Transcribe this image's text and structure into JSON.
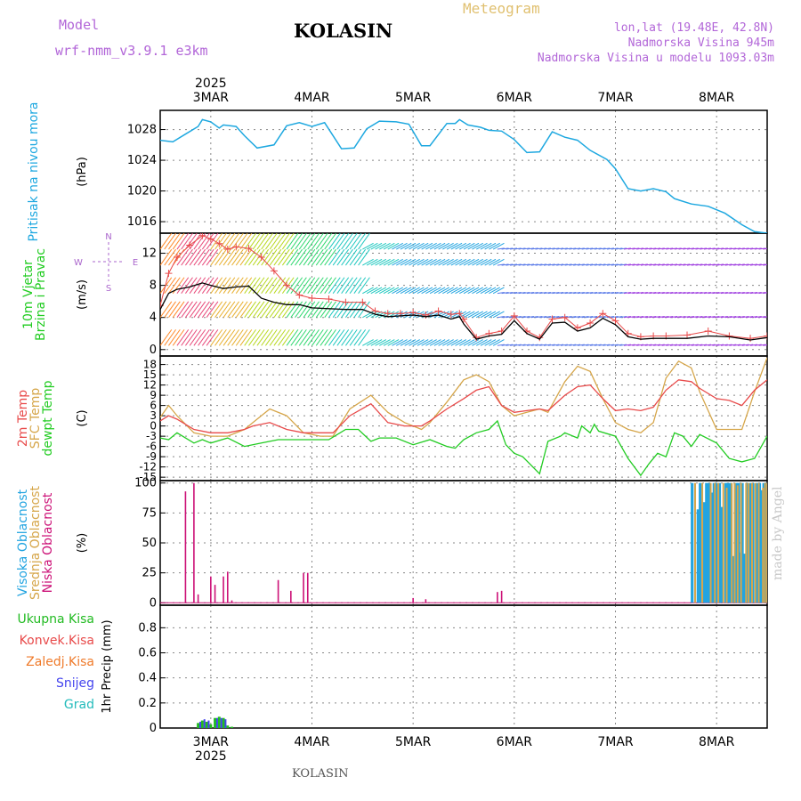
{
  "header": {
    "model_label": "Model",
    "model_name": "wrf-nmm_v3.9.1 e3km",
    "station": "KOLASIN",
    "product": "Meteogram",
    "coords": "lon,lat (19.48E, 42.8N)",
    "elevation": "Nadmorska Visina 945m",
    "model_elevation": "Nadmorska Visina u modelu 1093.03m"
  },
  "footer": {
    "station": "KOLASIN",
    "credit": "made by Angel"
  },
  "colors": {
    "pressure": "#1ea8e0",
    "temp2m": "#e84a4a",
    "sfc": "#d6a64a",
    "dew": "#22cc22",
    "wind_speed": "#000000",
    "gust": "#e84a4a",
    "cloud_high": "#22a4e0",
    "cloud_mid": "#d6a64a",
    "cloud_low": "#cc1177",
    "precip_total": "#22bb22",
    "precip_conv": "#e84a4a",
    "precip_ice": "#ef7a2a",
    "precip_snow": "#4444ee",
    "precip_graupel": "#22bbbb",
    "compass": "#aa66cc"
  },
  "time_axis": {
    "year": "2025",
    "days": [
      {
        "label": "3MAR",
        "t": 12
      },
      {
        "label": "4MAR",
        "t": 36
      },
      {
        "label": "5MAR",
        "t": 60
      },
      {
        "label": "6MAR",
        "t": 84
      },
      {
        "label": "7MAR",
        "t": 108
      },
      {
        "label": "8MAR",
        "t": 132
      }
    ]
  },
  "compass": {
    "n": "N",
    "s": "S",
    "e": "E",
    "w": "W"
  },
  "chart_data": [
    {
      "type": "line",
      "name": "pressure",
      "title_lines": [
        "Pritisak na nivou mora"
      ],
      "ylabel": "(hPa)",
      "xlim": [
        0,
        144
      ],
      "ylim": [
        1014.5,
        1030.5
      ],
      "yticks": [
        1016,
        1020,
        1024,
        1028
      ],
      "series": [
        {
          "name": "MSLP",
          "x": [
            0,
            3,
            6,
            9,
            10,
            12,
            14,
            15,
            18,
            20,
            23,
            27,
            30,
            33,
            36,
            39,
            43,
            46,
            49,
            52,
            56,
            59,
            62,
            64,
            68,
            70,
            71,
            73,
            76,
            78,
            81,
            84,
            87,
            90,
            93,
            96,
            99,
            102,
            106,
            108,
            111,
            114,
            117,
            120,
            122,
            126,
            130,
            134,
            138,
            141,
            144
          ],
          "y": [
            1026.6,
            1026.4,
            1027.4,
            1028.4,
            1029.3,
            1029.0,
            1028.2,
            1028.6,
            1028.4,
            1027.2,
            1025.6,
            1026.0,
            1028.5,
            1028.9,
            1028.4,
            1028.9,
            1025.5,
            1025.6,
            1028.1,
            1029.1,
            1029.0,
            1028.7,
            1025.9,
            1025.9,
            1028.8,
            1028.8,
            1029.3,
            1028.6,
            1028.3,
            1027.9,
            1027.8,
            1026.7,
            1025.0,
            1025.1,
            1027.7,
            1027.0,
            1026.6,
            1025.3,
            1024.1,
            1022.9,
            1020.3,
            1020.0,
            1020.3,
            1019.9,
            1019.0,
            1018.3,
            1018.0,
            1017.1,
            1015.6,
            1014.7,
            1014.5
          ]
        }
      ]
    },
    {
      "type": "line",
      "name": "wind",
      "title_lines": [
        "10m Vjetar",
        "Brzina i Pravac"
      ],
      "ylabel": "(m/s)",
      "xlim": [
        0,
        144
      ],
      "ylim": [
        -0.8,
        14.5
      ],
      "yticks": [
        0,
        4,
        8,
        12
      ],
      "series": [
        {
          "name": "speed",
          "x": [
            0,
            2,
            4,
            7,
            10,
            12,
            15,
            18,
            21,
            24,
            27,
            30,
            33,
            36,
            40,
            44,
            48,
            51,
            54,
            57,
            60,
            63,
            66,
            69,
            71,
            72,
            75,
            78,
            81,
            84,
            87,
            90,
            93,
            96,
            99,
            102,
            105,
            108,
            111,
            114,
            117,
            120,
            125,
            130,
            135,
            140,
            144
          ],
          "y": [
            5.0,
            7.0,
            7.5,
            7.8,
            8.3,
            8.0,
            7.6,
            7.8,
            7.9,
            6.4,
            5.9,
            5.6,
            5.6,
            5.2,
            5.1,
            5.0,
            5.0,
            4.4,
            4.1,
            4.2,
            4.3,
            4.1,
            4.3,
            3.8,
            4.1,
            3.2,
            1.3,
            1.7,
            1.9,
            3.6,
            2.0,
            1.3,
            3.3,
            3.4,
            2.3,
            2.7,
            3.9,
            3.1,
            1.6,
            1.3,
            1.4,
            1.4,
            1.4,
            1.7,
            1.6,
            1.2,
            1.5
          ]
        },
        {
          "name": "gust",
          "x": [
            0,
            2,
            4,
            7,
            10,
            12,
            14,
            16,
            18,
            21,
            24,
            27,
            30,
            33,
            36,
            40,
            44,
            48,
            51,
            54,
            57,
            60,
            63,
            66,
            69,
            71,
            72,
            75,
            78,
            81,
            84,
            87,
            90,
            93,
            96,
            99,
            102,
            105,
            108,
            111,
            114,
            117,
            120,
            125,
            130,
            135,
            140,
            144
          ],
          "y": [
            5.5,
            9.5,
            11.5,
            13.0,
            14.2,
            13.8,
            13.2,
            12.5,
            12.8,
            12.6,
            11.5,
            9.8,
            8.0,
            6.8,
            6.4,
            6.3,
            5.9,
            5.9,
            4.8,
            4.5,
            4.5,
            4.6,
            4.3,
            4.8,
            4.4,
            4.5,
            3.8,
            1.5,
            2.0,
            2.3,
            4.2,
            2.3,
            1.5,
            3.8,
            4.0,
            2.7,
            3.3,
            4.5,
            3.6,
            2.0,
            1.6,
            1.7,
            1.7,
            1.8,
            2.3,
            1.7,
            1.4,
            1.7
          ]
        }
      ],
      "barb_rows": [
        0.5,
        4.0,
        7.0,
        10.5,
        12.5
      ]
    },
    {
      "type": "line",
      "name": "temperature",
      "title_lines": [
        "2m Temp",
        "SFC Temp",
        "dewpt Temp"
      ],
      "ylabel": "(C)",
      "xlim": [
        0,
        144
      ],
      "ylim": [
        -16,
        20.5
      ],
      "yticks": [
        -15,
        -12,
        -9,
        -6,
        -3,
        0,
        3,
        6,
        9,
        12,
        15,
        18,
        21
      ],
      "series": [
        {
          "name": "2m Temp",
          "x": [
            0,
            2,
            4,
            8,
            12,
            16,
            20,
            22,
            26,
            30,
            34,
            38,
            41,
            45,
            50,
            54,
            58,
            62,
            64,
            68,
            72,
            75,
            78,
            81,
            84,
            87,
            90,
            92,
            96,
            99,
            102,
            105,
            108,
            111,
            114,
            117,
            120,
            123,
            126,
            128,
            132,
            135,
            138,
            141,
            144
          ],
          "y": [
            1.5,
            3.0,
            2.0,
            -1.0,
            -2.0,
            -2.0,
            -1.0,
            0.0,
            1.0,
            -1.0,
            -2.0,
            -2.0,
            -2.0,
            3.0,
            6.5,
            1.0,
            0.0,
            0.0,
            1.5,
            5.0,
            8.0,
            10.5,
            11.5,
            6.0,
            4.0,
            4.5,
            5.0,
            4.5,
            9.0,
            11.5,
            12.0,
            8.0,
            4.5,
            5.0,
            4.5,
            5.5,
            10.5,
            13.5,
            13.0,
            11.0,
            8.0,
            7.5,
            6.0,
            10.5,
            13.5
          ]
        },
        {
          "name": "SFC Temp",
          "x": [
            0,
            2,
            4,
            8,
            12,
            16,
            20,
            22,
            26,
            30,
            34,
            38,
            41,
            45,
            50,
            54,
            58,
            62,
            64,
            68,
            72,
            75,
            78,
            81,
            84,
            87,
            90,
            92,
            96,
            99,
            102,
            105,
            108,
            111,
            114,
            117,
            120,
            123,
            126,
            128,
            132,
            135,
            138,
            141,
            144
          ],
          "y": [
            2.5,
            6.0,
            3.0,
            -2.0,
            -3.0,
            -3.0,
            -1.0,
            1.0,
            5.0,
            3.0,
            -2.0,
            -3.0,
            -3.0,
            5.0,
            9.0,
            4.0,
            1.0,
            -1.0,
            1.0,
            7.0,
            13.5,
            15.0,
            13.0,
            6.0,
            3.0,
            4.0,
            5.0,
            4.0,
            13.0,
            17.5,
            16.0,
            8.0,
            1.0,
            -1.0,
            -2.0,
            1.0,
            14.0,
            19.0,
            17.0,
            10.0,
            -1.0,
            -1.0,
            -1.0,
            10.0,
            20.0
          ]
        },
        {
          "name": "dewpt Temp",
          "x": [
            0,
            2,
            4,
            8,
            10,
            12,
            16,
            20,
            24,
            28,
            32,
            36,
            40,
            44,
            47,
            50,
            52,
            56,
            60,
            64,
            68,
            70,
            72,
            75,
            78,
            80,
            82,
            84,
            86,
            90,
            92,
            95,
            96,
            99,
            100,
            102,
            103,
            104,
            108,
            111,
            114,
            116,
            118,
            120,
            122,
            124,
            126,
            128,
            132,
            135,
            138,
            141,
            144
          ],
          "y": [
            -3.5,
            -4.0,
            -2.0,
            -5.0,
            -4.0,
            -5.0,
            -3.5,
            -6.0,
            -5.0,
            -4.0,
            -4.0,
            -4.0,
            -4.0,
            -1.0,
            -1.0,
            -4.5,
            -3.5,
            -3.5,
            -5.5,
            -4.0,
            -6.0,
            -6.5,
            -4.0,
            -2.0,
            -1.0,
            1.5,
            -5.5,
            -8.0,
            -9.0,
            -14.0,
            -4.5,
            -3.0,
            -2.0,
            -3.5,
            0.0,
            -2.0,
            0.5,
            -1.5,
            -3.0,
            -9.5,
            -14.5,
            -11.0,
            -8.0,
            -9.0,
            -2.0,
            -3.0,
            -6.0,
            -2.5,
            -5.0,
            -9.5,
            -10.5,
            -9.5,
            -3.0
          ]
        }
      ]
    },
    {
      "type": "bar",
      "name": "cloud",
      "title_lines": [
        "Visoka Oblacnost",
        "Srednja Oblacnost",
        "Niska Oblacnost"
      ],
      "ylabel": "(%)",
      "xlim": [
        0,
        144
      ],
      "ylim": [
        -2,
        102
      ],
      "yticks": [
        0,
        25,
        50,
        75,
        100
      ],
      "low": {
        "x": [
          6,
          8,
          9,
          12,
          13,
          15,
          16,
          17,
          28,
          31,
          34,
          35,
          60,
          63,
          80,
          81
        ],
        "y": [
          93,
          100,
          7,
          22,
          15,
          22,
          26,
          2,
          19,
          10,
          25,
          25,
          4,
          3,
          9,
          10
        ]
      },
      "high": {
        "x": [
          126.2,
          127.6,
          128.1,
          129.1,
          129.6,
          130.2,
          130.9,
          131.4,
          131.9,
          132.7,
          133.2,
          134.2,
          134.6,
          135.2,
          136.0,
          136.6,
          137.2,
          137.6,
          138.1,
          138.6,
          139.2,
          140.1,
          140.6,
          141.6,
          142.2,
          142.8,
          143.2,
          143.7
        ],
        "y": [
          100,
          78,
          100,
          84,
          100,
          100,
          92,
          100,
          100,
          100,
          80,
          100,
          100,
          100,
          39,
          100,
          100,
          42,
          100,
          41,
          100,
          100,
          100,
          100,
          100,
          94,
          100,
          100
        ]
      },
      "mid": {
        "x": [
          126.9,
          128.6,
          130.6,
          131.6,
          132.4,
          133.6,
          134.4,
          135.6,
          136.3,
          137.0,
          137.8,
          139.0,
          139.6,
          140.4,
          141.2,
          142.0,
          143.0,
          143.5,
          144.0
        ],
        "y": [
          100,
          100,
          100,
          100,
          100,
          100,
          96,
          100,
          100,
          98,
          100,
          100,
          100,
          100,
          100,
          100,
          96,
          100,
          100
        ]
      }
    },
    {
      "type": "bar",
      "name": "precip",
      "title_lines": [
        "Ukupna Kisa",
        "Konvek.Kisa",
        "Zaledj.Kisa",
        "Snijeg",
        "Grad"
      ],
      "ylabel": "1hr Precip (mm)",
      "xlim": [
        0,
        144
      ],
      "ylim": [
        0,
        0.98
      ],
      "yticks": [
        0,
        0.2,
        0.4,
        0.6,
        0.8
      ],
      "total": {
        "x": [
          9,
          10,
          11,
          12,
          13,
          14,
          15,
          16,
          17
        ],
        "y": [
          0.04,
          0.06,
          0.05,
          0.03,
          0.08,
          0.09,
          0.08,
          0.02,
          0.01
        ]
      },
      "snow": {
        "x": [
          9.5,
          10.5,
          11.5,
          13.5,
          14.5,
          15.5
        ],
        "y": [
          0.05,
          0.07,
          0.06,
          0.08,
          0.08,
          0.07
        ]
      }
    }
  ]
}
